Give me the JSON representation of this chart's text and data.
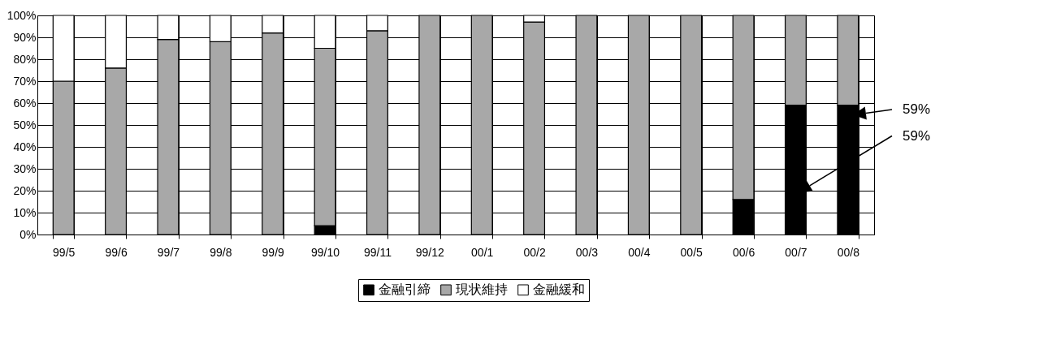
{
  "chart_data": {
    "type": "bar",
    "stacked": true,
    "categories": [
      "99/5",
      "99/6",
      "99/7",
      "99/8",
      "99/9",
      "99/10",
      "99/11",
      "99/12",
      "00/1",
      "00/2",
      "00/3",
      "00/4",
      "00/5",
      "00/6",
      "00/7",
      "00/8"
    ],
    "series": [
      {
        "name": "金融引締",
        "color": "#000000",
        "values": [
          0,
          0,
          0,
          0,
          0,
          4,
          0,
          0,
          0,
          0,
          0,
          0,
          0,
          16,
          59,
          59
        ]
      },
      {
        "name": "現状維持",
        "color": "#a8a8a8",
        "values": [
          70,
          76,
          89,
          88,
          92,
          81,
          93,
          100,
          100,
          97,
          100,
          100,
          100,
          84,
          41,
          41
        ]
      },
      {
        "name": "金融緩和",
        "color": "#ffffff",
        "values": [
          30,
          24,
          11,
          12,
          8,
          15,
          7,
          0,
          0,
          3,
          0,
          0,
          0,
          0,
          0,
          0
        ]
      }
    ],
    "ylim": [
      0,
      100
    ],
    "yticks": [
      {
        "value": 0,
        "label": "0%"
      },
      {
        "value": 10,
        "label": "10%"
      },
      {
        "value": 20,
        "label": "20%"
      },
      {
        "value": 30,
        "label": "30%"
      },
      {
        "value": 40,
        "label": "40%"
      },
      {
        "value": 50,
        "label": "50%"
      },
      {
        "value": 60,
        "label": "60%"
      },
      {
        "value": 70,
        "label": "70%"
      },
      {
        "value": 80,
        "label": "80%"
      },
      {
        "value": 90,
        "label": "90%"
      },
      {
        "value": 100,
        "label": "100%"
      }
    ],
    "grid": true,
    "legend": "bottom",
    "annotations": [
      "59%",
      "59%"
    ]
  }
}
